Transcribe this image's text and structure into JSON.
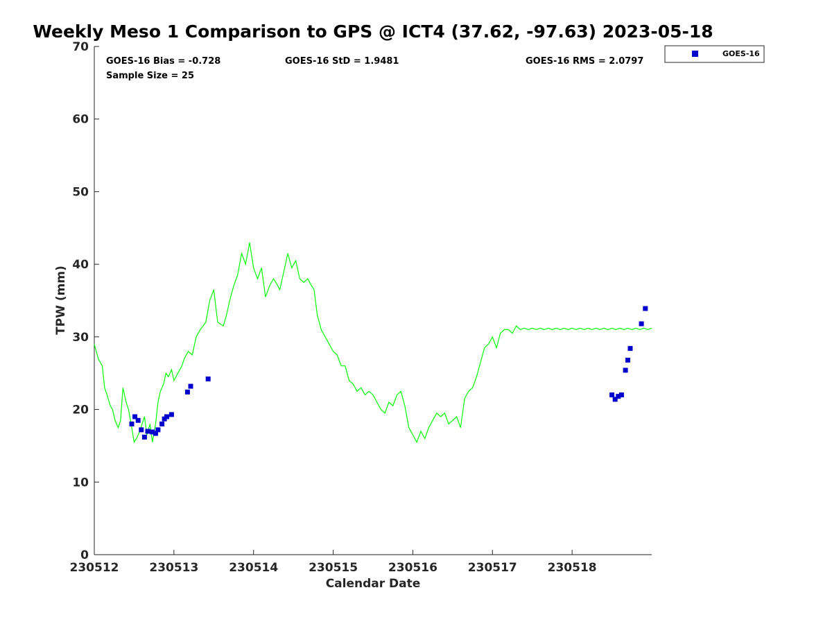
{
  "chart_data": {
    "type": "scatter",
    "title": "Weekly Meso 1 Comparison to GPS @ ICT4 (37.62, -97.63) 2023-05-18",
    "xlabel": "Calendar Date",
    "ylabel": "TPW (mm)",
    "xlim": [
      0,
      7
    ],
    "ylim": [
      0,
      70
    ],
    "x_unit": "days since 230512",
    "x_ticks": [
      0,
      1,
      2,
      3,
      4,
      5,
      6
    ],
    "x_tick_labels": [
      "230512",
      "230513",
      "230514",
      "230515",
      "230516",
      "230517",
      "230518"
    ],
    "y_ticks": [
      0,
      10,
      20,
      30,
      40,
      50,
      60,
      70
    ],
    "y_tick_labels": [
      "0",
      "10",
      "20",
      "30",
      "40",
      "50",
      "60",
      "70"
    ],
    "grid": false,
    "legend": {
      "placement": "outside-top-right",
      "entries": [
        "GOES-16"
      ]
    },
    "stats": {
      "bias": "GOES-16 Bias = -0.728",
      "std": "GOES-16 StD = 1.9481",
      "rms": "GOES-16 RMS = 2.0797",
      "sample_size": "Sample Size = 25"
    },
    "series": [
      {
        "name": "GPS",
        "kind": "line",
        "color": "#00ff00",
        "x": [
          0.0,
          0.05,
          0.1,
          0.13,
          0.16,
          0.2,
          0.23,
          0.26,
          0.3,
          0.33,
          0.36,
          0.4,
          0.43,
          0.47,
          0.5,
          0.53,
          0.57,
          0.6,
          0.63,
          0.66,
          0.7,
          0.73,
          0.77,
          0.8,
          0.83,
          0.87,
          0.9,
          0.93,
          0.97,
          1.0,
          1.05,
          1.1,
          1.13,
          1.18,
          1.23,
          1.28,
          1.33,
          1.4,
          1.45,
          1.5,
          1.55,
          1.62,
          1.66,
          1.7,
          1.75,
          1.8,
          1.85,
          1.9,
          1.95,
          2.0,
          2.05,
          2.1,
          2.15,
          2.2,
          2.25,
          2.28,
          2.33,
          2.38,
          2.43,
          2.48,
          2.53,
          2.58,
          2.63,
          2.68,
          2.73,
          2.76,
          2.8,
          2.85,
          2.9,
          2.95,
          3.0,
          3.05,
          3.1,
          3.15,
          3.2,
          3.25,
          3.3,
          3.35,
          3.4,
          3.45,
          3.5,
          3.55,
          3.6,
          3.65,
          3.7,
          3.75,
          3.8,
          3.85,
          3.9,
          3.95,
          4.0,
          4.05,
          4.1,
          4.15,
          4.2,
          4.25,
          4.3,
          4.35,
          4.4,
          4.45,
          4.5,
          4.55,
          4.6,
          4.65,
          4.7,
          4.75,
          4.8,
          4.85,
          4.9,
          4.95,
          5.0,
          5.05,
          5.1,
          5.15,
          5.2,
          5.25,
          5.3,
          5.35,
          5.4,
          5.45,
          5.5,
          5.55,
          5.6,
          5.65,
          5.7,
          5.75,
          5.8,
          5.85,
          5.9,
          5.95,
          6.0,
          6.05,
          6.1,
          6.15,
          6.2,
          6.25,
          6.3,
          6.35,
          6.4,
          6.45,
          6.5,
          6.55,
          6.6,
          6.65,
          6.7,
          6.75,
          6.8,
          6.85,
          6.9,
          6.95,
          7.0
        ],
        "y": [
          29.0,
          27.0,
          26.0,
          23.0,
          22.0,
          20.5,
          20.0,
          18.5,
          17.5,
          18.5,
          23.0,
          21.0,
          20.0,
          17.5,
          15.5,
          16.0,
          17.0,
          18.0,
          19.0,
          16.5,
          18.0,
          15.5,
          18.0,
          21.0,
          22.5,
          23.5,
          25.0,
          24.5,
          25.5,
          24.0,
          25.0,
          26.0,
          27.0,
          28.0,
          27.5,
          30.0,
          31.0,
          32.0,
          35.0,
          36.5,
          32.0,
          31.5,
          33.0,
          35.0,
          37.0,
          38.5,
          41.5,
          40.0,
          43.0,
          39.5,
          38.0,
          39.5,
          35.5,
          37.0,
          38.0,
          37.5,
          36.5,
          39.0,
          41.5,
          39.5,
          40.5,
          38.0,
          37.5,
          38.0,
          37.0,
          36.5,
          33.0,
          31.0,
          30.0,
          29.0,
          28.0,
          27.5,
          26.0,
          26.0,
          24.0,
          23.5,
          22.5,
          23.0,
          22.0,
          22.5,
          22.0,
          21.0,
          20.0,
          19.5,
          21.0,
          20.5,
          22.0,
          22.5,
          20.5,
          17.5,
          16.5,
          15.5,
          17.0,
          16.0,
          17.5,
          18.5,
          19.5,
          19.0,
          19.5,
          18.0,
          18.5,
          19.0,
          17.5,
          21.5,
          22.5,
          23.0,
          24.5,
          26.5,
          28.5,
          29.0,
          30.0,
          28.5,
          30.5,
          31.0,
          31.0,
          30.5,
          31.5,
          31.0,
          31.2,
          31.0,
          31.2,
          31.0,
          31.2,
          31.0,
          31.2,
          31.0,
          31.2,
          31.0,
          31.2,
          31.0,
          31.2,
          31.0,
          31.2,
          31.0,
          31.2,
          31.0,
          31.2,
          31.0,
          31.2,
          31.0,
          31.2,
          31.0,
          31.2,
          31.0,
          31.2,
          31.0,
          31.2,
          31.0,
          31.2,
          31.0,
          31.2
        ]
      },
      {
        "name": "GOES-16",
        "kind": "scatter",
        "color": "#0000cc",
        "x": [
          0.47,
          0.51,
          0.55,
          0.59,
          0.63,
          0.67,
          0.73,
          0.77,
          0.8,
          0.85,
          0.88,
          0.91,
          0.97,
          1.17,
          1.21,
          1.43,
          6.5,
          6.54,
          6.58,
          6.62,
          6.67,
          6.7,
          6.73,
          6.87,
          6.92
        ],
        "y": [
          18.0,
          19.0,
          18.5,
          17.2,
          16.2,
          17.0,
          16.9,
          16.7,
          17.2,
          18.0,
          18.7,
          19.0,
          19.3,
          22.4,
          23.2,
          24.2,
          22.0,
          21.4,
          21.8,
          22.0,
          25.4,
          26.8,
          28.4,
          31.8,
          33.9
        ]
      }
    ]
  }
}
